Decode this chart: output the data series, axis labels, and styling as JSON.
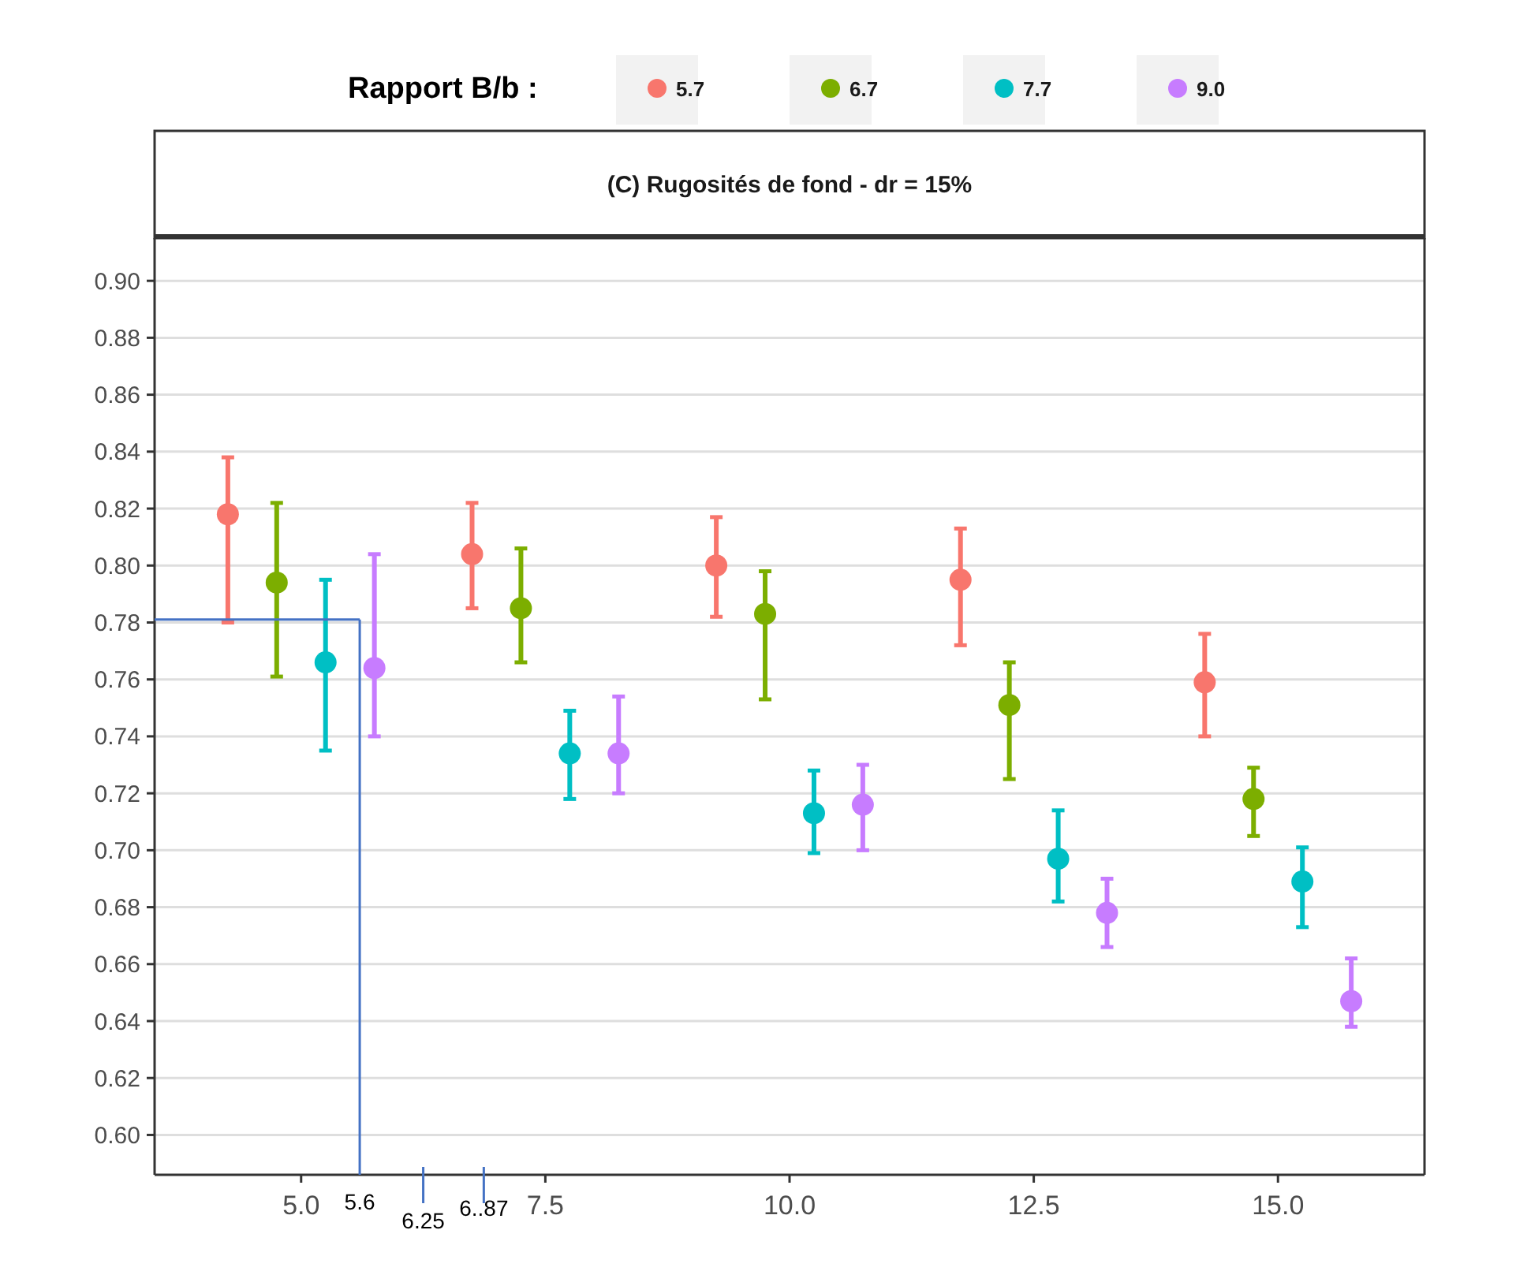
{
  "chart_data": {
    "type": "scatter",
    "title": "(C) Rugosités de fond - dr = 15%",
    "legend_title": "Rapport B/b :",
    "legend": "top",
    "grid": "y",
    "marker": "circle",
    "xlim": [
      3.5,
      16.5
    ],
    "xticks": [
      {
        "value": 5,
        "label": "5.0"
      },
      7.5,
      {
        "value": 10,
        "label": "10.0"
      },
      12.5,
      {
        "value": 15,
        "label": "15.0"
      }
    ],
    "ylim": [
      0.586,
      0.915
    ],
    "yticks": [
      {
        "value": 0.6,
        "label": "0.60"
      },
      0.62,
      0.64,
      0.66,
      0.68,
      {
        "value": 0.7,
        "label": "0.70"
      },
      0.72,
      0.74,
      0.76,
      0.78,
      {
        "value": 0.8,
        "label": "0.80"
      },
      0.82,
      0.84,
      0.86,
      0.88,
      {
        "value": 0.9,
        "label": "0.90"
      }
    ],
    "series": [
      {
        "name": "5.7",
        "color": "#f8766d",
        "x": [
          4.25,
          6.75,
          9.25,
          11.75,
          14.25
        ],
        "values": [
          0.818,
          0.804,
          0.8,
          0.795,
          0.759
        ],
        "errors": [
          [
            0.78,
            0.838
          ],
          [
            0.785,
            0.822
          ],
          [
            0.782,
            0.817
          ],
          [
            0.772,
            0.813
          ],
          [
            0.74,
            0.776
          ]
        ]
      },
      {
        "name": "6.7",
        "color": "#7cae00",
        "x": [
          4.75,
          7.25,
          9.75,
          12.25,
          14.75
        ],
        "values": [
          0.794,
          0.785,
          0.783,
          0.751,
          0.718
        ],
        "errors": [
          [
            0.761,
            0.822
          ],
          [
            0.766,
            0.806
          ],
          [
            0.753,
            0.798
          ],
          [
            0.725,
            0.766
          ],
          [
            0.705,
            0.729
          ]
        ]
      },
      {
        "name": "7.7",
        "color": "#00bfc4",
        "x": [
          5.25,
          7.75,
          10.25,
          12.75,
          15.25
        ],
        "values": [
          0.766,
          0.734,
          0.713,
          0.697,
          0.689
        ],
        "errors": [
          [
            0.735,
            0.795
          ],
          [
            0.718,
            0.749
          ],
          [
            0.699,
            0.728
          ],
          [
            0.682,
            0.714
          ],
          [
            0.673,
            0.701
          ]
        ]
      },
      {
        "name": "9.0",
        "color": "#c77cff",
        "x": [
          5.75,
          8.25,
          10.75,
          13.25,
          15.75
        ],
        "values": [
          0.764,
          0.734,
          0.716,
          0.678,
          0.647
        ],
        "errors": [
          [
            0.74,
            0.804
          ],
          [
            0.72,
            0.754
          ],
          [
            0.7,
            0.73
          ],
          [
            0.666,
            0.69
          ],
          [
            0.638,
            0.662
          ]
        ]
      }
    ],
    "ref_lines": [
      {
        "axis": "y",
        "value": 0.781,
        "color": "#4472c4"
      },
      {
        "axis": "x",
        "value": 5.6,
        "label": "5.6",
        "color": "#4472c4"
      },
      {
        "axis": "x",
        "value": 6.25,
        "label": "6.25",
        "color": "#4472c4"
      },
      {
        "axis": "x",
        "value": 6.87,
        "label": "6..87",
        "color": "#4472c4"
      }
    ]
  }
}
